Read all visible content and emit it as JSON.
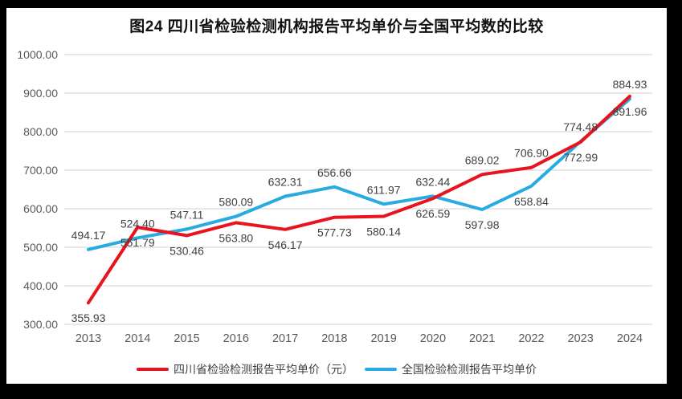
{
  "page": {
    "frame_color": "#000000",
    "surface_color": "#ffffff"
  },
  "chart_data": {
    "type": "line",
    "title": "图24  四川省检验检测机构报告平均单价与全国平均数的比较",
    "x": [
      "2013",
      "2014",
      "2015",
      "2016",
      "2017",
      "2018",
      "2019",
      "2020",
      "2021",
      "2022",
      "2023",
      "2024"
    ],
    "series": [
      {
        "name": "四川省检验检测报告平均单价（元）",
        "color": "#e8131d",
        "values": [
          355.93,
          551.79,
          530.46,
          563.8,
          546.17,
          577.73,
          580.14,
          626.59,
          689.02,
          706.9,
          772.99,
          891.96
        ],
        "label_pos": [
          "below",
          "below",
          "below",
          "below",
          "below",
          "below",
          "below",
          "below",
          "above",
          "above",
          "below",
          "below"
        ]
      },
      {
        "name": "全国检验检测报告平均单价",
        "color": "#29abe2",
        "values": [
          494.17,
          524.4,
          547.11,
          580.09,
          632.31,
          656.66,
          611.97,
          632.44,
          597.98,
          658.84,
          774.48,
          884.93
        ],
        "label_pos": [
          "above",
          "above",
          "above",
          "above",
          "above",
          "above",
          "above",
          "above",
          "below",
          "below",
          "above",
          "above"
        ]
      }
    ],
    "ylim": [
      300,
      1000
    ],
    "ytick_step": 100,
    "ytick_decimals": 2,
    "value_label_decimals": 2,
    "grid": "horizontal",
    "legend_position": "bottom",
    "gridline_color": "#d9d9d9",
    "axis_label_color": "#595959",
    "data_label_color": "#404040",
    "line_width": 4
  }
}
